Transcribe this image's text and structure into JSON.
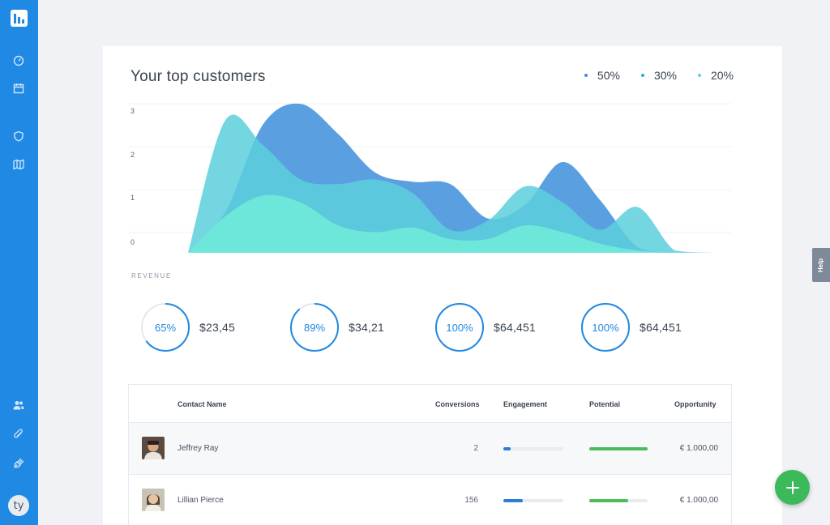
{
  "sidebar": {
    "nav_top": [
      {
        "icon": "gauge-icon"
      },
      {
        "icon": "calendar-icon"
      },
      {
        "icon": "shield-icon"
      },
      {
        "icon": "map-icon"
      }
    ],
    "nav_bottom": [
      {
        "icon": "users-icon"
      },
      {
        "icon": "paperclip-icon"
      },
      {
        "icon": "plug-icon"
      }
    ],
    "user_initials": "ty"
  },
  "card": {
    "title": "Your top customers",
    "legend": [
      {
        "label": "50%",
        "color": "#3a8fd9"
      },
      {
        "label": "30%",
        "color": "#2fa9d4"
      },
      {
        "label": "20%",
        "color": "#5fd2de"
      }
    ],
    "section_label": "REVENUE"
  },
  "chart_data": {
    "type": "area",
    "y_ticks": [
      "0",
      "1",
      "2",
      "3"
    ],
    "ylim": [
      0,
      3.2
    ],
    "grid": true,
    "legend_position": "top-right",
    "series": [
      {
        "name": "50%",
        "color": "#3d8fdc",
        "values": [
          0,
          0.9,
          2.8,
          3.25,
          2.6,
          1.75,
          1.55,
          1.5,
          0.75,
          1.05,
          1.98,
          1.15,
          0.12,
          0,
          0
        ]
      },
      {
        "name": "20%",
        "color": "#5ccfdc",
        "values": [
          0,
          2.9,
          2.35,
          1.6,
          1.5,
          1.6,
          1.3,
          0.5,
          0.7,
          1.45,
          1.1,
          0.5,
          1.0,
          0.05,
          0
        ]
      },
      {
        "name": "30%",
        "color": "#6ee9d8",
        "values": [
          0,
          0.8,
          1.25,
          1.1,
          0.6,
          0.45,
          0.55,
          0.3,
          0.3,
          0.6,
          0.45,
          0.2,
          0.05,
          0,
          0
        ]
      }
    ]
  },
  "stats": [
    {
      "percent": 65,
      "label": "65%",
      "value": "$23,45"
    },
    {
      "percent": 89,
      "label": "89%",
      "value": "$34,21"
    },
    {
      "percent": 100,
      "label": "100%",
      "value": "$64,451"
    },
    {
      "percent": 100,
      "label": "100%",
      "value": "$64,451"
    }
  ],
  "table": {
    "headers": {
      "contact": "Contact Name",
      "conversions": "Conversions",
      "engagement": "Engagement",
      "potential": "Potential",
      "opportunity": "Opportunity"
    },
    "rows": [
      {
        "name": "Jeffrey Ray",
        "conversions": "2",
        "engagement": 0.12,
        "potential": 1.0,
        "opportunity": "€ 1.000,00"
      },
      {
        "name": "Lillian Pierce",
        "conversions": "156",
        "engagement": 0.32,
        "potential": 0.67,
        "opportunity": "€ 1.000,00"
      }
    ]
  },
  "help_label": "Help",
  "colors": {
    "primary": "#2089e3",
    "engagement_bar": "#2a7fd4",
    "potential_bar": "#4cbb5e",
    "fab": "#3cb95a"
  }
}
